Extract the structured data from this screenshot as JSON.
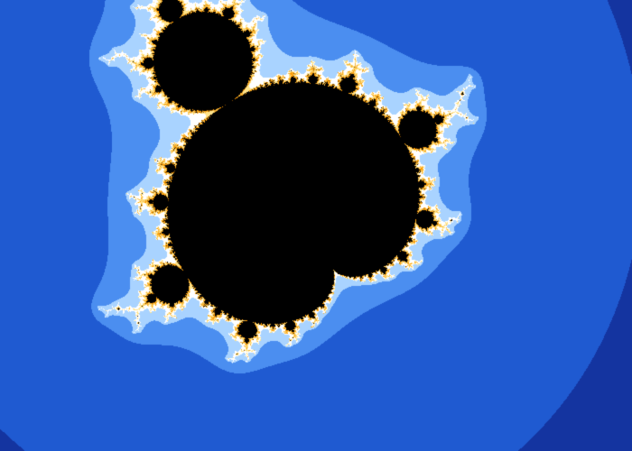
{
  "image": {
    "subject": "mandelbrot-set-fractal",
    "colors": {
      "interior": "#000000",
      "outer_background": "#0a0a3c",
      "palette": [
        "#0b0b4a",
        "#0e1d6e",
        "#1434a0",
        "#1f5ad1",
        "#4b8ef0",
        "#a9d3ff",
        "#ffffff",
        "#ffe38a",
        "#f5b53a",
        "#ff9a00",
        "#7a4a00"
      ]
    },
    "view": {
      "center_re": -0.05,
      "center_im": 0.02,
      "scale": 2.3,
      "rotation_deg": -58,
      "max_iterations": 160
    }
  }
}
